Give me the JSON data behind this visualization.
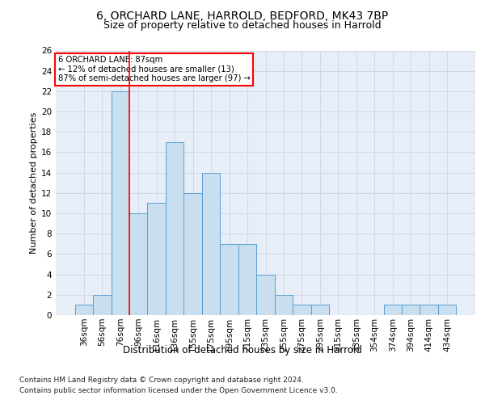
{
  "title1": "6, ORCHARD LANE, HARROLD, BEDFORD, MK43 7BP",
  "title2": "Size of property relative to detached houses in Harrold",
  "xlabel": "Distribution of detached houses by size in Harrold",
  "ylabel": "Number of detached properties",
  "footnote1": "Contains HM Land Registry data © Crown copyright and database right 2024.",
  "footnote2": "Contains public sector information licensed under the Open Government Licence v3.0.",
  "categories": [
    "36sqm",
    "56sqm",
    "76sqm",
    "96sqm",
    "116sqm",
    "136sqm",
    "155sqm",
    "175sqm",
    "195sqm",
    "215sqm",
    "235sqm",
    "255sqm",
    "275sqm",
    "295sqm",
    "315sqm",
    "335sqm",
    "354sqm",
    "374sqm",
    "394sqm",
    "414sqm",
    "434sqm"
  ],
  "values": [
    1,
    2,
    22,
    10,
    11,
    17,
    12,
    14,
    7,
    7,
    4,
    2,
    1,
    1,
    0,
    0,
    0,
    1,
    1,
    1,
    1
  ],
  "bar_color": "#c9dff0",
  "bar_edge_color": "#5a9fd4",
  "grid_color": "#d0d8e8",
  "background_color": "#e8eef8",
  "property_line_x": 2.5,
  "annotation_title": "6 ORCHARD LANE: 87sqm",
  "annotation_line1": "← 12% of detached houses are smaller (13)",
  "annotation_line2": "87% of semi-detached houses are larger (97) →",
  "ylim": [
    0,
    26
  ],
  "yticks": [
    0,
    2,
    4,
    6,
    8,
    10,
    12,
    14,
    16,
    18,
    20,
    22,
    24,
    26
  ],
  "title1_fontsize": 10,
  "title2_fontsize": 9,
  "ylabel_fontsize": 8,
  "xlabel_fontsize": 8.5,
  "tick_fontsize": 7.5,
  "footnote_fontsize": 6.5
}
